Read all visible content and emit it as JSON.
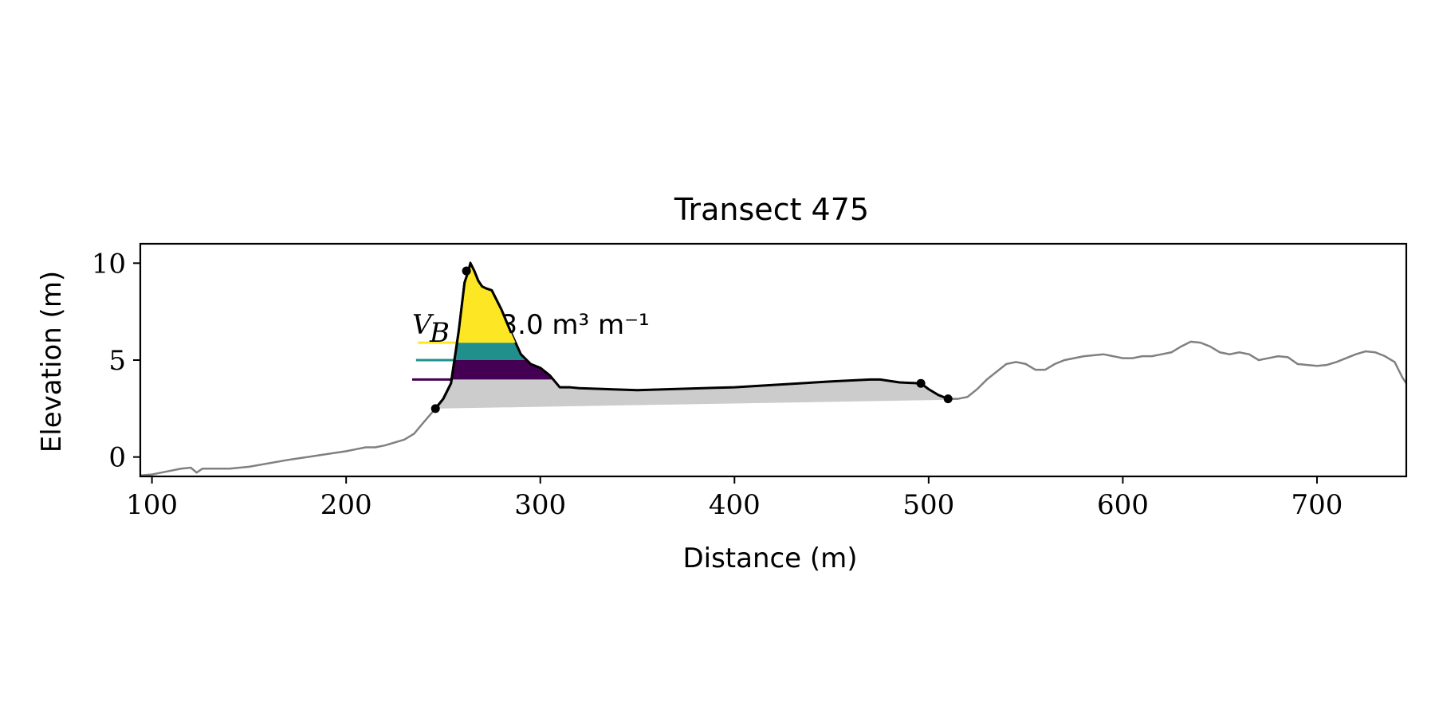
{
  "chart_data": {
    "type": "area",
    "title": "Transect 475",
    "xlabel": "Distance (m)",
    "ylabel": "Elevation (m)",
    "xlim": [
      94,
      746
    ],
    "ylim": [
      -1.0,
      11.0
    ],
    "xticks": [
      100,
      200,
      300,
      400,
      500,
      600,
      700
    ],
    "yticks": [
      0,
      5,
      10
    ],
    "grid": false,
    "legend": "none",
    "annotation": {
      "symbol": "V",
      "subscript": "B",
      "text": "173.0 m³ m⁻¹",
      "visible_text": "73.0 m³ m⁻¹",
      "x": 234,
      "y": 6.35
    },
    "profile": {
      "name": "",
      "color": "#808080",
      "x": [
        94,
        100,
        110,
        115,
        120,
        123,
        126,
        130,
        140,
        150,
        170,
        190,
        200,
        205,
        210,
        215,
        220,
        225,
        230,
        235,
        240,
        246,
        250,
        254,
        258,
        261,
        263,
        264,
        266,
        268,
        270,
        272,
        275,
        280,
        285,
        290,
        295,
        300,
        305,
        310,
        315,
        320,
        350,
        400,
        450,
        470,
        475,
        485,
        496,
        500,
        505,
        510,
        515,
        520,
        525,
        530,
        535,
        540,
        545,
        550,
        555,
        560,
        565,
        570,
        580,
        590,
        595,
        600,
        605,
        610,
        615,
        620,
        625,
        630,
        635,
        640,
        645,
        650,
        655,
        660,
        665,
        670,
        675,
        680,
        685,
        690,
        695,
        700,
        705,
        710,
        715,
        720,
        725,
        730,
        735,
        740,
        744,
        746
      ],
      "y": [
        -0.95,
        -0.9,
        -0.7,
        -0.6,
        -0.55,
        -0.8,
        -0.6,
        -0.6,
        -0.6,
        -0.5,
        -0.15,
        0.15,
        0.3,
        0.4,
        0.5,
        0.5,
        0.6,
        0.75,
        0.9,
        1.2,
        1.8,
        2.5,
        3.0,
        3.8,
        6.5,
        9.0,
        9.6,
        10.0,
        9.6,
        9.1,
        8.8,
        8.7,
        8.6,
        7.6,
        6.4,
        5.3,
        4.8,
        4.6,
        4.2,
        3.6,
        3.6,
        3.55,
        3.45,
        3.6,
        3.9,
        4.0,
        4.0,
        3.85,
        3.8,
        3.5,
        3.2,
        3.0,
        3.0,
        3.1,
        3.5,
        4.0,
        4.4,
        4.8,
        4.9,
        4.8,
        4.5,
        4.5,
        4.8,
        5.0,
        5.2,
        5.3,
        5.2,
        5.1,
        5.1,
        5.2,
        5.2,
        5.3,
        5.4,
        5.7,
        5.95,
        5.9,
        5.7,
        5.4,
        5.3,
        5.4,
        5.3,
        5.0,
        5.1,
        5.2,
        5.15,
        4.8,
        4.75,
        4.7,
        4.75,
        4.9,
        5.1,
        5.3,
        5.45,
        5.4,
        5.2,
        4.9,
        4.1,
        3.8
      ]
    },
    "dune_outline": {
      "name": "",
      "color": "#000000",
      "x": [
        246,
        250,
        254,
        258,
        261,
        263,
        264,
        266,
        268,
        270,
        272,
        275,
        280,
        285,
        290,
        295,
        300,
        305,
        310,
        315,
        320,
        350,
        400,
        450,
        470,
        475,
        485,
        496,
        500,
        505,
        510
      ],
      "y": [
        2.5,
        3.0,
        3.8,
        6.5,
        9.0,
        9.6,
        10.0,
        9.6,
        9.1,
        8.8,
        8.7,
        8.6,
        7.6,
        6.4,
        5.3,
        4.8,
        4.6,
        4.2,
        3.6,
        3.6,
        3.55,
        3.45,
        3.6,
        3.9,
        4.0,
        4.0,
        3.85,
        3.8,
        3.5,
        3.2,
        3.0
      ]
    },
    "key_points": {
      "x": [
        246,
        262,
        496,
        510
      ],
      "y": [
        2.5,
        9.6,
        3.8,
        3.0
      ]
    },
    "base_line": {
      "x": [
        246,
        510
      ],
      "y": [
        2.5,
        2.95
      ]
    },
    "volume_layers": [
      {
        "name": "",
        "color": "#cccccc",
        "x": [
          246,
          300,
          350,
          400,
          450,
          470,
          496,
          510
        ],
        "y": [
          4.0,
          4.0,
          3.45,
          3.6,
          3.9,
          4.0,
          3.8,
          3.0
        ]
      },
      {
        "name": "",
        "color": "#440154",
        "lower": 4.0,
        "upper": 5.0,
        "level_line_x_start": 234
      },
      {
        "name": "",
        "color": "#21908c",
        "lower": 5.0,
        "upper": 5.9,
        "level_line_x_start": 236
      },
      {
        "name": "",
        "color": "#fde725",
        "lower": 5.9,
        "upper": 10.0,
        "level_line_x_start": 237
      }
    ]
  }
}
